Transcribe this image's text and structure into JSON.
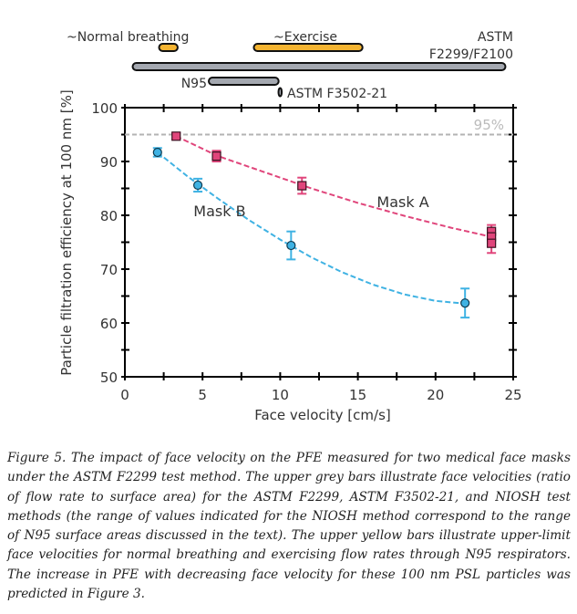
{
  "chart_data": {
    "type": "scatter",
    "xlabel": "Face velocity [cm/s]",
    "ylabel": "Particle filtration efficiency at 100 nm [%]",
    "xlim": [
      0,
      25
    ],
    "ylim": [
      50,
      100
    ],
    "xticks": [
      0,
      5,
      10,
      15,
      20,
      25
    ],
    "yticks": [
      50,
      60,
      70,
      80,
      90,
      100
    ],
    "grid": false,
    "reference_line": {
      "y": 95,
      "label": "95%",
      "color": "#b3b3b3"
    },
    "series": [
      {
        "name": "Mask A",
        "color": "#e0457b",
        "marker": "square",
        "points": [
          {
            "x": 3.3,
            "y": 94.7,
            "err": 0.6
          },
          {
            "x": 5.9,
            "y": 91.0,
            "err": 1.0
          },
          {
            "x": 11.4,
            "y": 85.5,
            "err": 1.5
          },
          {
            "x": 23.6,
            "y": 77.0,
            "err": 1.2
          },
          {
            "x": 23.6,
            "y": 76.0,
            "err": 1.2
          },
          {
            "x": 23.6,
            "y": 74.8,
            "err": 1.8
          }
        ],
        "fit": [
          [
            3.3,
            94.7
          ],
          [
            6,
            91.0
          ],
          [
            9,
            88.0
          ],
          [
            12,
            85.0
          ],
          [
            15,
            82.3
          ],
          [
            18,
            79.9
          ],
          [
            21,
            77.7
          ],
          [
            23.6,
            76.0
          ]
        ]
      },
      {
        "name": "Mask B",
        "color": "#3fb2e3",
        "marker": "circle",
        "points": [
          {
            "x": 2.1,
            "y": 91.7,
            "err": 0.8
          },
          {
            "x": 4.7,
            "y": 85.6,
            "err": 1.2
          },
          {
            "x": 10.7,
            "y": 74.4,
            "err": 2.6
          },
          {
            "x": 21.9,
            "y": 63.7,
            "err": 2.7
          }
        ],
        "fit": [
          [
            2.1,
            91.7
          ],
          [
            4,
            87.3
          ],
          [
            6,
            83.1
          ],
          [
            8,
            79.1
          ],
          [
            10,
            75.5
          ],
          [
            12,
            72.2
          ],
          [
            14,
            69.4
          ],
          [
            16,
            67.1
          ],
          [
            18,
            65.3
          ],
          [
            20,
            64.1
          ],
          [
            21.9,
            63.6
          ]
        ]
      }
    ],
    "annotations": [
      {
        "text": "Mask A",
        "x": 17.9,
        "y": 81.5
      },
      {
        "text": "Mask B",
        "x": 6.1,
        "y": 79.8
      }
    ],
    "range_bars": [
      {
        "label": "~Normal breathing",
        "min": 2.2,
        "max": 3.4,
        "color": "#f4b431"
      },
      {
        "label": "~Exercise",
        "min": 8.3,
        "max": 15.3,
        "color": "#f4b431"
      },
      {
        "label": "ASTM F2299/F2100",
        "min": 0.5,
        "max": 24.5,
        "color": "#a4a8b0"
      },
      {
        "label": "N95",
        "min": 5.4,
        "max": 9.9,
        "color": "#a4a8b0"
      },
      {
        "label": "ASTM F3502-21",
        "min": 9.95,
        "max": 10.05,
        "color": "#a4a8b0"
      }
    ]
  },
  "labels": {
    "normal_breathing": "~Normal breathing",
    "exercise": "~Exercise",
    "astm_line1": "ASTM",
    "astm_line2": "F2299/F2100",
    "n95": "N95",
    "f3502": "ASTM F3502-21"
  },
  "caption": "Figure 5. The impact of face velocity on the PFE measured for two medical face masks under the ASTM F2299 test method. The upper grey bars illustrate face velocities (ratio of flow rate to surface area) for the ASTM F2299, ASTM F3502-21, and NIOSH test methods (the range of values indicated for the NIOSH method correspond to the range of N95 surface areas discussed in the text). The upper yellow bars illustrate upper-limit face velocities for normal breathing and exercising flow rates through N95 respirators. The increase in PFE with decreasing face velocity for these 100 nm PSL particles was predicted in Figure 3."
}
